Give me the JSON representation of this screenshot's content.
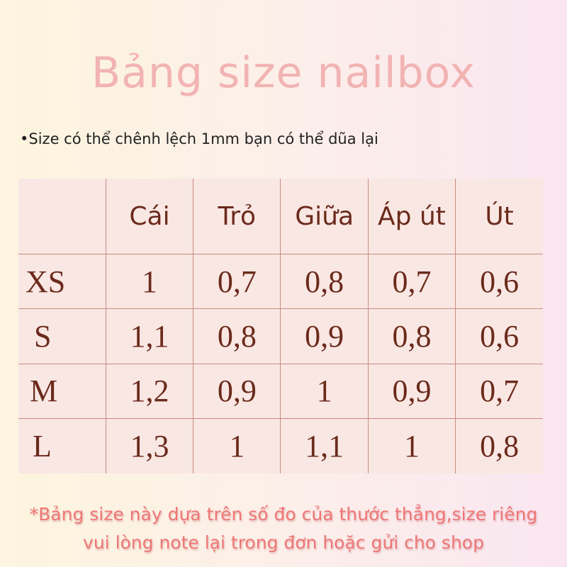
{
  "title": "Bảng size nailbox",
  "note": "•Size có thể chênh lệch 1mm bạn có thể dũa lại",
  "table": {
    "headers": [
      "",
      "Cái",
      "Trỏ",
      "Giữa",
      "Áp út",
      "Út"
    ],
    "rows": [
      [
        "XS",
        "1",
        "0,7",
        "0,8",
        "0,7",
        "0,6"
      ],
      [
        "S",
        "1,1",
        "0,8",
        "0,9",
        "0,8",
        "0,6"
      ],
      [
        "M",
        "1,2",
        "0,9",
        "1",
        "0,9",
        "0,7"
      ],
      [
        "L",
        "1,3",
        "1",
        "1,1",
        "1",
        "0,8"
      ]
    ]
  },
  "footer": {
    "line1": "*Bảng size này dựa trên số đo của thước thẳng,size riêng",
    "line2": "vui lòng note lại trong đơn hoặc gửi cho shop"
  },
  "colors": {
    "title": "#f2b3b3",
    "table_text": "#6b2a1c",
    "grid": "#c98a82",
    "footer": "#ee7777"
  }
}
